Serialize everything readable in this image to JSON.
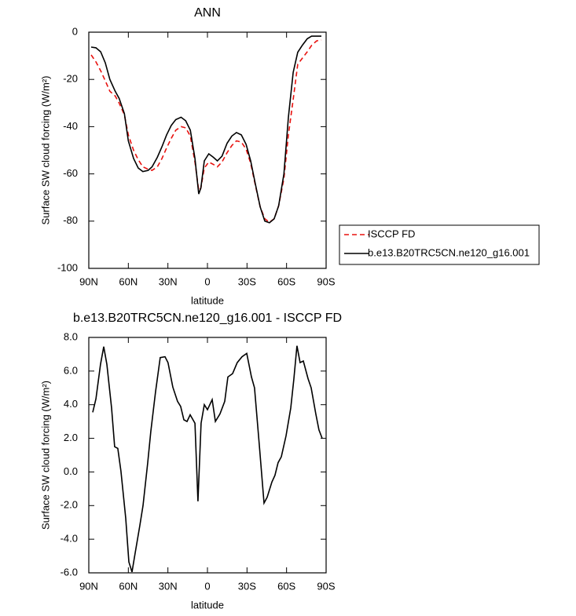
{
  "chart_data": [
    {
      "type": "line",
      "title": "ANN",
      "x_label": "latitude",
      "y_label": "Surface SW cloud forcing (W/m²)",
      "x": [
        88.2,
        84.6,
        81,
        77.5,
        74,
        70,
        67,
        63,
        60,
        56,
        52.5,
        49,
        45,
        42,
        38,
        34.5,
        31,
        27.5,
        24,
        20,
        16.5,
        13,
        9.5,
        6.6,
        5,
        2.4,
        -1,
        -4.5,
        -7.5,
        -11,
        -14.9,
        -18.5,
        -22,
        -25.7,
        -29.3,
        -32.8,
        -36.4,
        -40,
        -43.5,
        -47,
        -50.6,
        -54,
        -58,
        -61.4,
        -65,
        -68.5,
        -72,
        -75.7,
        -79,
        -82.8,
        -86.4
      ],
      "series": [
        {
          "name": "ISCCP FD",
          "color": "#e8120f",
          "line_style": "dashed",
          "values": [
            -9.6,
            -12.6,
            -16.3,
            -20.6,
            -25,
            -27,
            -30,
            -35,
            -43.5,
            -50,
            -54,
            -57,
            -58,
            -58.5,
            -57,
            -53.5,
            -49,
            -45,
            -41.5,
            -40,
            -40.5,
            -44,
            -55,
            -67,
            -66,
            -57.5,
            -55,
            -56,
            -57,
            -55,
            -51,
            -48,
            -46,
            -46.5,
            -49.5,
            -55.5,
            -65,
            -74,
            -79,
            -80.5,
            -79,
            -73.5,
            -62,
            -43.5,
            -28.5,
            -13.6,
            -11,
            -8.3,
            -5.6,
            -3.7,
            -3.3
          ]
        },
        {
          "name": "b.e13.B20TRC5CN.ne120_g16.001",
          "color": "#000000",
          "line_style": "solid",
          "values": [
            -6.3,
            -6.6,
            -8.3,
            -13,
            -20,
            -25,
            -28,
            -34.5,
            -46,
            -53.5,
            -57.5,
            -59,
            -58.5,
            -57,
            -53,
            -48.5,
            -43.5,
            -39.5,
            -37,
            -36,
            -37.5,
            -41.5,
            -53.5,
            -68.5,
            -66,
            -54.5,
            -51.5,
            -53,
            -54.5,
            -52.5,
            -47,
            -44,
            -42.5,
            -43.5,
            -47.5,
            -54.5,
            -64.5,
            -74,
            -80,
            -80.7,
            -79,
            -73.5,
            -60,
            -36,
            -17,
            -8.5,
            -5.5,
            -2.8,
            -1.7,
            -1.7,
            -1.7
          ]
        }
      ],
      "xlim": [
        90,
        -90
      ],
      "xticks": [
        {
          "value": 90,
          "label": "90N"
        },
        {
          "value": 60,
          "label": "60N"
        },
        {
          "value": 30,
          "label": "30N"
        },
        0,
        {
          "value": -30,
          "label": "30S"
        },
        {
          "value": -60,
          "label": "60S"
        },
        {
          "value": -90,
          "label": "90S"
        }
      ],
      "ylim": [
        -100,
        0
      ],
      "yticks": [
        0,
        -20,
        -40,
        -60,
        -80,
        -100
      ],
      "legend": "right"
    },
    {
      "type": "line",
      "title": "b.e13.B20TRC5CN.ne120_g16.001 - ISCCP FD",
      "x_label": "latitude",
      "y_label": "Surface SW cloud forcing (W/m²)",
      "x": [
        87,
        84.6,
        81.1,
        78.7,
        76.3,
        72.7,
        70.4,
        68,
        65.6,
        62,
        59.6,
        57.2,
        54.9,
        51.3,
        48.9,
        45.3,
        43,
        39.4,
        35.8,
        32.2,
        29.9,
        26.3,
        22.7,
        20.3,
        17.9,
        15.5,
        13.1,
        9.5,
        7.2,
        4.8,
        2.4,
        0,
        -3.6,
        -6,
        -9.5,
        -13.1,
        -15.5,
        -19.1,
        -22.6,
        -26.2,
        -29.8,
        -33.4,
        -35.7,
        -39.3,
        -42.9,
        -45.3,
        -48.9,
        -51.2,
        -53.6,
        -56,
        -59.6,
        -63.2,
        -65.5,
        -67.9,
        -70.3,
        -72.7,
        -76.3,
        -78.7,
        -82.2,
        -84.6,
        -87
      ],
      "series": [
        {
          "color": "#000000",
          "line_style": "solid",
          "values": [
            3.55,
            4.35,
            6.4,
            7.45,
            6.4,
            3.8,
            1.5,
            1.4,
            0.05,
            -2.75,
            -5.35,
            -5.95,
            -4.85,
            -3.2,
            -2,
            0.55,
            2.4,
            4.75,
            6.8,
            6.85,
            6.5,
            5.05,
            4.2,
            3.9,
            3.1,
            3.0,
            3.4,
            2.9,
            -1.75,
            2.9,
            4.0,
            3.7,
            4.3,
            3.0,
            3.45,
            4.2,
            5.65,
            5.85,
            6.5,
            6.85,
            7.05,
            5.65,
            5.0,
            1.65,
            -1.85,
            -1.5,
            -0.6,
            -0.2,
            0.55,
            0.9,
            2.15,
            3.8,
            5.5,
            7.5,
            6.5,
            6.6,
            5.55,
            5.0,
            3.45,
            2.5,
            2.0
          ]
        }
      ],
      "xlim": [
        90,
        -90
      ],
      "xticks": [
        {
          "value": 90,
          "label": "90N"
        },
        {
          "value": 60,
          "label": "60N"
        },
        {
          "value": 30,
          "label": "30N"
        },
        0,
        {
          "value": -30,
          "label": "30S"
        },
        {
          "value": -60,
          "label": "60S"
        },
        {
          "value": -90,
          "label": "90S"
        }
      ],
      "ylim": [
        -6,
        8
      ],
      "yticks": [
        {
          "value": 8,
          "label": "8.0"
        },
        {
          "value": 6,
          "label": "6.0"
        },
        {
          "value": 4,
          "label": "4.0"
        },
        {
          "value": 2,
          "label": "2.0"
        },
        {
          "value": 0,
          "label": "0.0"
        },
        {
          "value": -2,
          "label": "-2.0"
        },
        {
          "value": -4,
          "label": "-4.0"
        },
        {
          "value": -6,
          "label": "-6.0"
        }
      ]
    }
  ]
}
